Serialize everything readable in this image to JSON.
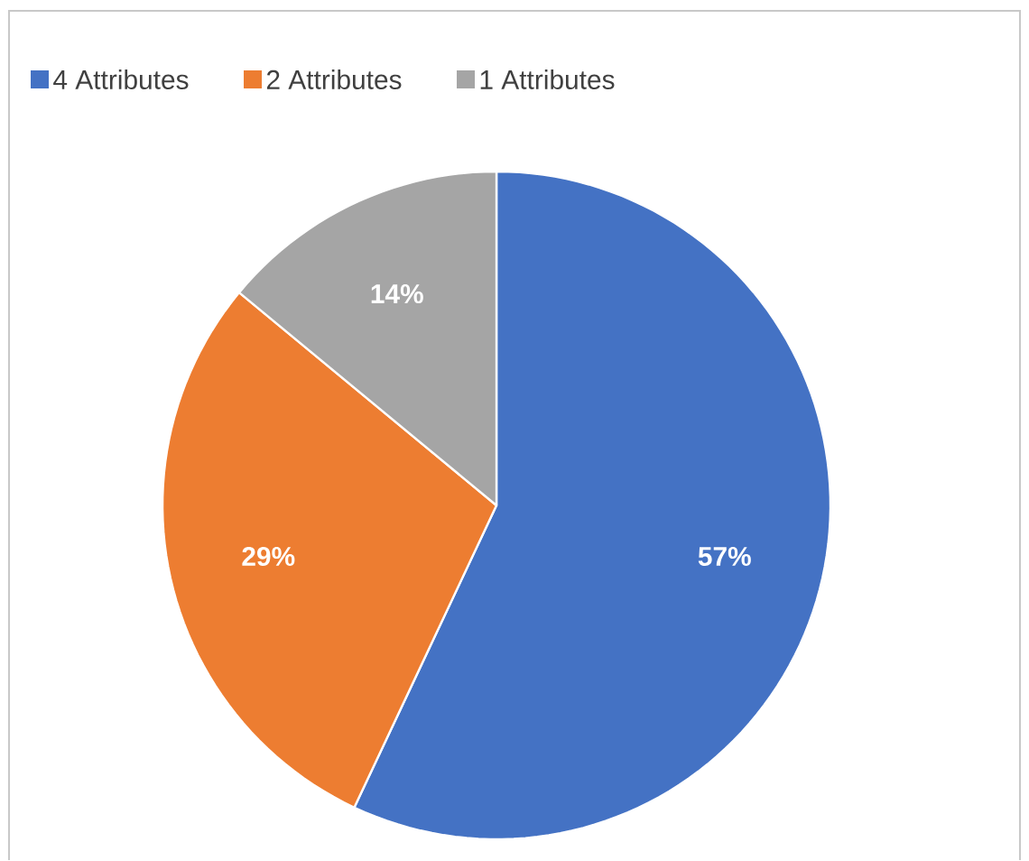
{
  "chart_data": {
    "type": "pie",
    "categories": [
      "4 Attributes",
      "2 Attributes",
      "1 Attributes"
    ],
    "values": [
      57,
      29,
      14
    ],
    "colors": [
      "#4472c4",
      "#ed7d31",
      "#a5a5a5"
    ],
    "value_labels": [
      "57%",
      "29%",
      "14%"
    ],
    "legend": "top left"
  }
}
